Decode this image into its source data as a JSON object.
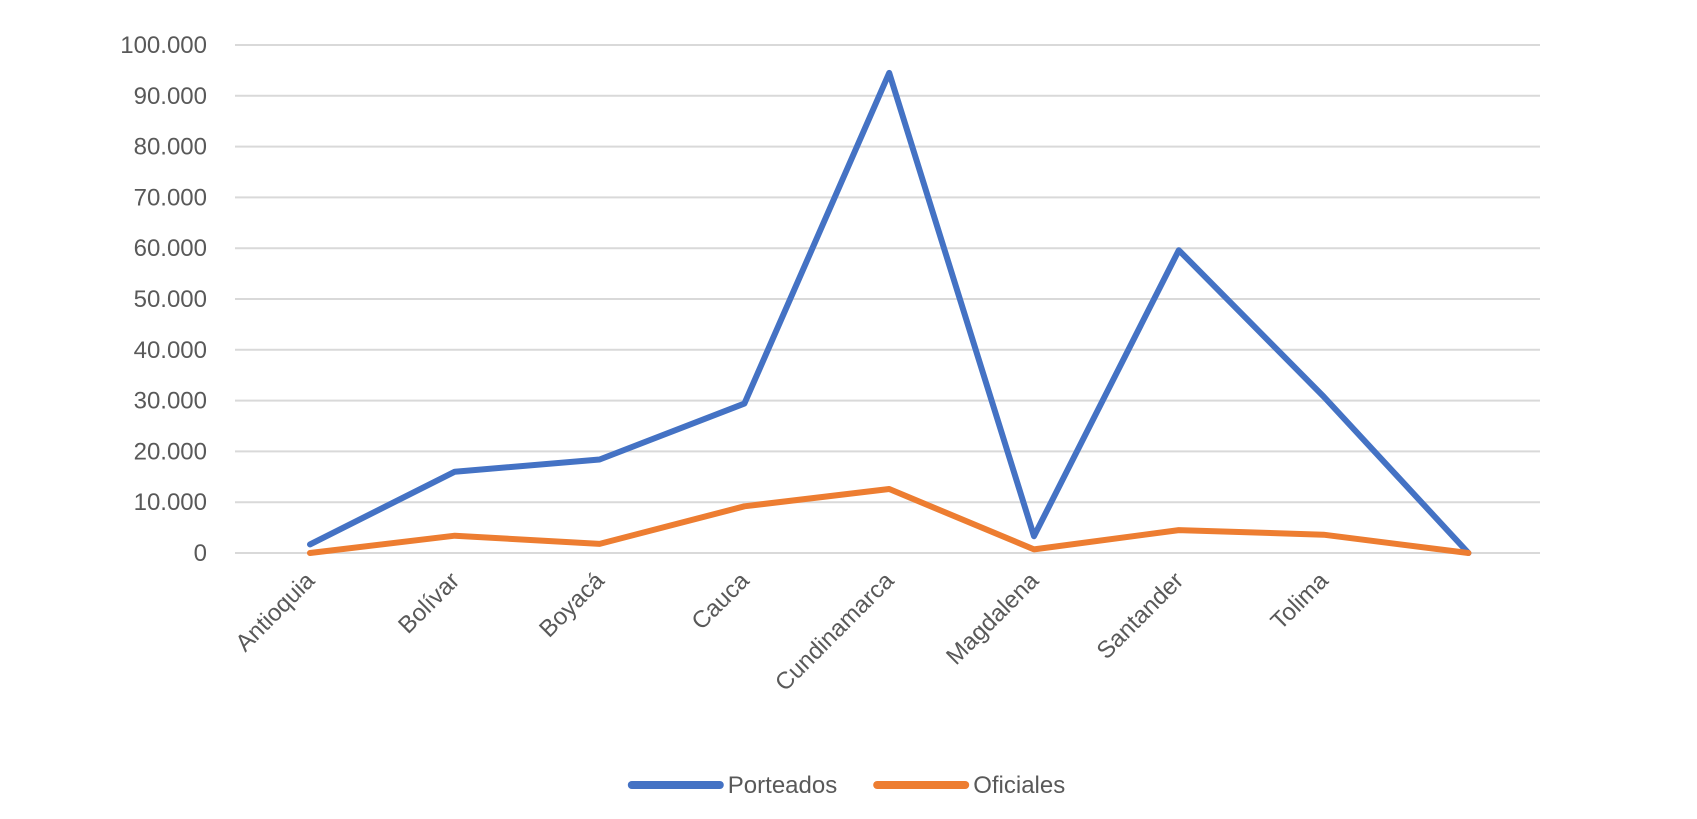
{
  "chart_data": {
    "type": "line",
    "title": "",
    "xlabel": "",
    "ylabel": "",
    "categories": [
      "Antioquia",
      "Bolívar",
      "Boyacá",
      "Cauca",
      "Cundinamarca",
      "Magdalena",
      "Santander",
      "Tolima",
      ""
    ],
    "ylim": [
      0,
      100000
    ],
    "yticks": [
      0,
      10000,
      20000,
      30000,
      40000,
      50000,
      60000,
      70000,
      80000,
      90000,
      100000
    ],
    "ytick_labels": [
      "0",
      "10.000",
      "20.000",
      "30.000",
      "40.000",
      "50.000",
      "60.000",
      "70.000",
      "80.000",
      "90.000",
      "100.000"
    ],
    "grid": true,
    "legend_position": "bottom",
    "series": [
      {
        "name": "Porteados",
        "color": "#4472c4",
        "values": [
          1700,
          16000,
          18400,
          29400,
          94500,
          3300,
          59600,
          30800,
          0
        ]
      },
      {
        "name": "Oficiales",
        "color": "#ed7d31",
        "values": [
          0,
          3400,
          1800,
          9200,
          12600,
          700,
          4500,
          3600,
          0
        ]
      }
    ]
  }
}
